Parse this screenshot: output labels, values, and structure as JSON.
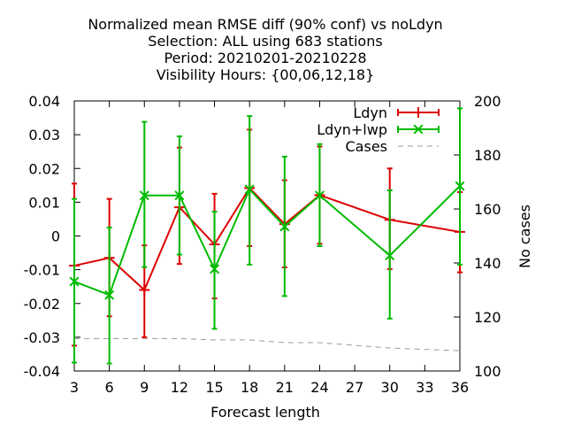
{
  "chart_data": {
    "type": "line",
    "title_lines": [
      "Normalized mean RMSE diff (90% conf) vs noLdyn",
      "Selection: ALL using   683 stations",
      "Period: 20210201-20210228",
      "Visibility   Hours: {00,06,12,18}"
    ],
    "xlabel": "Forecast length",
    "ylabel": "",
    "y2label": "No cases",
    "xlim": [
      3,
      36
    ],
    "ylim": [
      -0.04,
      0.04
    ],
    "y2lim": [
      100,
      200
    ],
    "xticks": [
      3,
      6,
      9,
      12,
      15,
      18,
      21,
      24,
      27,
      30,
      33,
      36
    ],
    "yticks": [
      "0.04",
      "0.03",
      "0.02",
      "0.01",
      "0",
      "-0.01",
      "-0.02",
      "-0.03",
      "-0.04"
    ],
    "y2ticks": [
      "200",
      "180",
      "160",
      "140",
      "120",
      "100"
    ],
    "legend_position": "top-right",
    "grid": false,
    "series": [
      {
        "name": "Ldyn",
        "color": "#dd0000",
        "marker": "plus",
        "x": [
          3,
          6,
          9,
          12,
          15,
          18,
          21,
          24,
          30,
          36
        ],
        "y": [
          -0.0088,
          -0.0065,
          -0.016,
          0.0085,
          -0.0025,
          0.0142,
          0.0035,
          0.0121,
          0.0048,
          0.0012
        ],
        "err_low": [
          -0.0325,
          -0.0238,
          -0.03,
          -0.0083,
          -0.0185,
          -0.003,
          -0.0093,
          -0.0023,
          -0.0098,
          -0.0108
        ],
        "err_high": [
          0.0155,
          0.011,
          -0.0028,
          0.0262,
          0.0125,
          0.0315,
          0.0165,
          0.0265,
          0.02,
          0.013
        ]
      },
      {
        "name": "Ldyn+lwp",
        "color": "#00bb00",
        "marker": "x",
        "x": [
          3,
          6,
          9,
          12,
          15,
          18,
          21,
          24,
          30,
          36
        ],
        "y": [
          -0.0135,
          -0.0175,
          0.012,
          0.012,
          -0.0098,
          0.0138,
          0.0028,
          0.012,
          -0.0058,
          0.0148
        ],
        "err_low": [
          -0.0375,
          -0.0378,
          -0.0092,
          -0.0055,
          -0.0275,
          -0.0085,
          -0.0178,
          -0.003,
          -0.0245,
          -0.0085
        ],
        "err_high": [
          0.011,
          0.0025,
          0.0338,
          0.0295,
          0.0072,
          0.0355,
          0.0235,
          0.0272,
          0.0135,
          0.0378
        ]
      },
      {
        "name": "Cases",
        "color": "#999999",
        "axis": "y2",
        "dashed": true,
        "x": [
          3,
          6,
          9,
          12,
          15,
          18,
          21,
          24,
          27,
          30,
          33,
          36
        ],
        "y": [
          112.0,
          112.0,
          112.0,
          112.0,
          111.5,
          111.5,
          110.5,
          110.5,
          109.5,
          108.5,
          108.0,
          107.5
        ]
      }
    ]
  }
}
